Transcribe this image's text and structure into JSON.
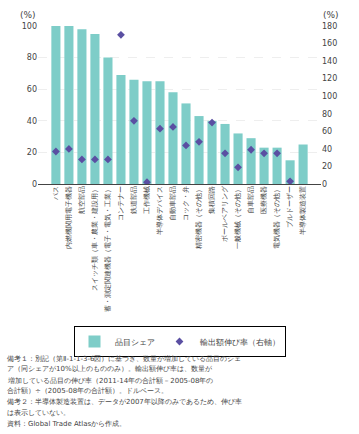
{
  "chart_data": {
    "type": "bar",
    "categories": [
      "バス",
      "内燃機関用電子機器",
      "航空部品",
      "スイッチ類（車・農業・建設用）",
      "蓄・測定関連機器（電子・電気・工業）",
      "コンテナー",
      "鉄道部品",
      "工作機械",
      "半導体デバイス",
      "自動車部品",
      "コック・弁",
      "精密機器（その他）",
      "集積回路",
      "ボールベアリング",
      "一般機械（その他）",
      "自車部品",
      "医療機器",
      "電気機器（その他）",
      "ブルドーザー",
      "半導体製造装置"
    ],
    "series": [
      {
        "name": "品目シェア",
        "type": "bar",
        "color": "#7ecdc8",
        "values": [
          100,
          100,
          98,
          95,
          80,
          69,
          66,
          65,
          65,
          58,
          51,
          43,
          40,
          38,
          32,
          29,
          23,
          23,
          15,
          25
        ]
      },
      {
        "name": "輸出額伸び率（右軸）",
        "type": "scatter",
        "marker": "diamond",
        "color": "#5a4fa2",
        "axis": "y2",
        "values": [
          37,
          40,
          28,
          28,
          28,
          170,
          72,
          2,
          63,
          65,
          44,
          48,
          70,
          35,
          19,
          39,
          35,
          35,
          3,
          null
        ]
      }
    ],
    "ylabel": "(%)",
    "y2label": "(%)",
    "ylim": [
      0,
      100
    ],
    "yticks": [
      0,
      20,
      40,
      60,
      80,
      100
    ],
    "y2lim": [
      0,
      180
    ],
    "y2ticks": [
      0,
      20,
      40,
      60,
      80,
      100,
      120,
      140,
      160,
      180
    ],
    "grid": true,
    "legend": "bottom",
    "annotations": [
      "備考１：別記（第Ⅱ-1-1-3-6図）に基づき、数量が増加している品目のシェ",
      "ア（同シェアが10%以上のもののみ）。輸出額伸び率は、数量が",
      "増加している品目の伸び率（2011-14年の合計額－2005-08年の",
      "合計額）÷（2005-08年の合計額）。ドルベース。",
      "備考２：半導体製造装置は、データが2007年以降のみであるため、伸び率",
      "は表示していない。",
      "資料：Global Trade Atlasから作成。"
    ]
  }
}
